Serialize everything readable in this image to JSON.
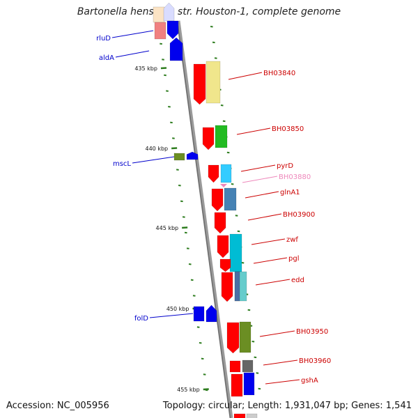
{
  "title": "Bartonella henselae str. Houston-1, complete genome",
  "footer": {
    "accession": "Accession: NC_005956",
    "stats": "Topology: circular; Length: 1,931,047 bp; Genes: 1,541"
  },
  "colors": {
    "backbone": "#8a8a8a",
    "tick": "#2e7d1f",
    "left_label": "#0000cc",
    "right_label": "#cc0000",
    "faded_label": "#ee88bb"
  },
  "ticks": [
    {
      "label": "435 kbp"
    },
    {
      "label": "440 kbp"
    },
    {
      "label": "445 kbp"
    },
    {
      "label": "450 kbp"
    },
    {
      "label": "455 kbp"
    }
  ],
  "left_genes": [
    {
      "label": "rluD"
    },
    {
      "label": "aldA"
    },
    {
      "label": "mscL"
    },
    {
      "label": "folD"
    }
  ],
  "right_genes": [
    {
      "label": "BH03840"
    },
    {
      "label": "BH03850"
    },
    {
      "label": "pyrD"
    },
    {
      "label": "BH03880",
      "faded": true
    },
    {
      "label": "glnA1"
    },
    {
      "label": "BH03900"
    },
    {
      "label": "zwf"
    },
    {
      "label": "pgl"
    },
    {
      "label": "edd"
    },
    {
      "label": "BH03950"
    },
    {
      "label": "BH03960"
    },
    {
      "label": "gshA"
    }
  ]
}
